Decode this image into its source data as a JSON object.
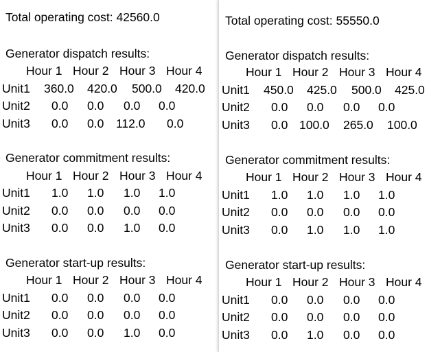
{
  "panels": [
    {
      "total_cost_text": "Total operating cost: 42560.0",
      "sections": [
        {
          "title": "Generator dispatch results:",
          "hours": [
            "Hour 1",
            "Hour 2",
            "Hour 3",
            "Hour 4"
          ],
          "rows": [
            {
              "unit": "Unit1",
              "values": [
                "360.0",
                "420.0",
                "500.0",
                "420.0"
              ]
            },
            {
              "unit": "Unit2",
              "values": [
                "0.0",
                "0.0",
                "0.0",
                "0.0"
              ]
            },
            {
              "unit": "Unit3",
              "values": [
                "0.0",
                "0.0",
                "112.0",
                "0.0"
              ]
            }
          ]
        },
        {
          "title": "Generator commitment results:",
          "hours": [
            "Hour 1",
            "Hour 2",
            "Hour 3",
            "Hour 4"
          ],
          "rows": [
            {
              "unit": "Unit1",
              "values": [
                "1.0",
                "1.0",
                "1.0",
                "1.0"
              ]
            },
            {
              "unit": "Unit2",
              "values": [
                "0.0",
                "0.0",
                "0.0",
                "0.0"
              ]
            },
            {
              "unit": "Unit3",
              "values": [
                "0.0",
                "0.0",
                "1.0",
                "0.0"
              ]
            }
          ]
        },
        {
          "title": "Generator start-up results:",
          "hours": [
            "Hour 1",
            "Hour 2",
            "Hour 3",
            "Hour 4"
          ],
          "rows": [
            {
              "unit": "Unit1",
              "values": [
                "0.0",
                "0.0",
                "0.0",
                "0.0"
              ]
            },
            {
              "unit": "Unit2",
              "values": [
                "0.0",
                "0.0",
                "0.0",
                "0.0"
              ]
            },
            {
              "unit": "Unit3",
              "values": [
                "0.0",
                "0.0",
                "1.0",
                "0.0"
              ]
            }
          ]
        }
      ]
    },
    {
      "total_cost_text": "Total operating cost: 55550.0",
      "sections": [
        {
          "title": "Generator dispatch results:",
          "hours": [
            "Hour 1",
            "Hour 2",
            "Hour 3",
            "Hour 4"
          ],
          "rows": [
            {
              "unit": "Unit1",
              "values": [
                "450.0",
                "425.0",
                "500.0",
                "425.0"
              ]
            },
            {
              "unit": "Unit2",
              "values": [
                "0.0",
                "0.0",
                "0.0",
                "0.0"
              ]
            },
            {
              "unit": "Unit3",
              "values": [
                "0.0",
                "100.0",
                "265.0",
                "100.0"
              ]
            }
          ]
        },
        {
          "title": "Generator commitment results:",
          "hours": [
            "Hour 1",
            "Hour 2",
            "Hour 3",
            "Hour 4"
          ],
          "rows": [
            {
              "unit": "Unit1",
              "values": [
                "1.0",
                "1.0",
                "1.0",
                "1.0"
              ]
            },
            {
              "unit": "Unit2",
              "values": [
                "0.0",
                "0.0",
                "0.0",
                "0.0"
              ]
            },
            {
              "unit": "Unit3",
              "values": [
                "0.0",
                "1.0",
                "1.0",
                "1.0"
              ]
            }
          ]
        },
        {
          "title": "Generator start-up results:",
          "hours": [
            "Hour 1",
            "Hour 2",
            "Hour 3",
            "Hour 4"
          ],
          "rows": [
            {
              "unit": "Unit1",
              "values": [
                "0.0",
                "0.0",
                "0.0",
                "0.0"
              ]
            },
            {
              "unit": "Unit2",
              "values": [
                "0.0",
                "0.0",
                "0.0",
                "0.0"
              ]
            },
            {
              "unit": "Unit3",
              "values": [
                "0.0",
                "1.0",
                "0.0",
                "0.0"
              ]
            }
          ]
        }
      ]
    }
  ]
}
